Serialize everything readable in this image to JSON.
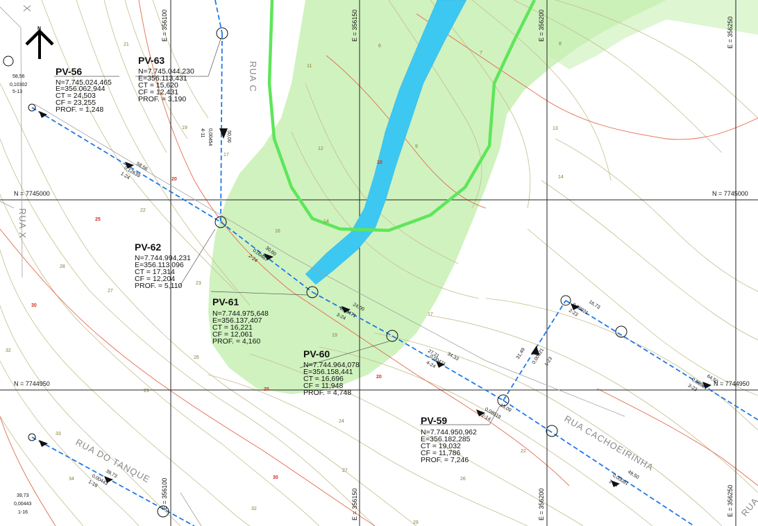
{
  "north_arrow": {
    "label": "N"
  },
  "grid": {
    "northings": [
      {
        "label": "N = 7745000"
      },
      {
        "label": "N = 7745000"
      },
      {
        "label": "N = 7744950"
      },
      {
        "label": "N = 7744950"
      }
    ],
    "eastings": [
      {
        "label": "E = 356100"
      },
      {
        "label": "E = 356150"
      },
      {
        "label": "E = 356200"
      },
      {
        "label": "E = 356250"
      },
      {
        "label": "E = 356100"
      },
      {
        "label": "E = 356150"
      },
      {
        "label": "E = 356200"
      },
      {
        "label": "E = 356250"
      }
    ]
  },
  "streets": [
    {
      "label": "RUA C"
    },
    {
      "label": "RUA X"
    },
    {
      "label": "RUA DO TANQUE"
    },
    {
      "label": "RUA CACHOEIRINHA"
    },
    {
      "label": "RUA"
    }
  ],
  "manholes": [
    {
      "name": "PV-56",
      "lines": [
        "N=7.745.024,465",
        "E=356.062,944",
        "CT = 24,503",
        "CF = 23,255",
        "PROF. = 1,248"
      ]
    },
    {
      "name": "PV-63",
      "lines": [
        "N=7.745.044,230",
        "E=356.113,431",
        "CT = 15,620",
        "CF = 12,431",
        "PROF. = 3,190"
      ]
    },
    {
      "name": "PV-62",
      "lines": [
        "N=7.744.994,231",
        "E=356.113,096",
        "CT = 17,314",
        "CF = 12,204",
        "PROF. = 5,110"
      ]
    },
    {
      "name": "PV-61",
      "lines": [
        "N=7.744.975,648",
        "E=356.137,407",
        "CT = 16,221",
        "CF = 12,061",
        "PROF. = 4,160"
      ]
    },
    {
      "name": "PV-60",
      "lines": [
        "N=7.744.964,078",
        "E=356.158,441",
        "CT = 16,696",
        "CF = 11,948",
        "PROF. = 4,748"
      ]
    },
    {
      "name": "PV-59",
      "lines": [
        "N=7.744.950,962",
        "E=356.182,285",
        "CT = 19,032",
        "CF = 11,786",
        "PROF. = 7,246"
      ]
    }
  ],
  "segment_labels": [
    {
      "length": "58,56",
      "slope": "0,12639",
      "code": "1-24"
    },
    {
      "length": "50,00",
      "slope": "0,00454",
      "code": "4-11"
    },
    {
      "length": "30,60",
      "slope": "0,00467",
      "code": "2-24"
    },
    {
      "length": "24,00",
      "slope": "0,00471",
      "code": "3-24"
    },
    {
      "length": "34,33",
      "slope": "0,00471",
      "code": "4-24"
    },
    {
      "length": "15,09",
      "slope": "0,08019",
      "code": "2-14"
    },
    {
      "length": "31,49",
      "slope": "0,00921",
      "code": "1-23"
    },
    {
      "length": "16,73",
      "slope": "0,00921",
      "code": "2-23"
    },
    {
      "length": "64,50",
      "slope": "0,00921",
      "code": "3-23"
    },
    {
      "length": "49,50",
      "slope": "0,00081",
      "code": "1-14"
    },
    {
      "length": "39,73",
      "slope": "0,00443",
      "code": "1-16"
    }
  ],
  "edge_labels": [
    {
      "length": "58,56",
      "slope": "0,10302",
      "code": "5-13"
    },
    {
      "length": "39,73",
      "slope": "0,00443",
      "code": "1-16"
    },
    {
      "length": "27,21",
      "slope": "",
      "code": ""
    }
  ],
  "contour_labels": [
    "21",
    "20",
    "19",
    "17",
    "22",
    "25",
    "28",
    "27",
    "30",
    "32",
    "26",
    "24",
    "23",
    "29",
    "33",
    "34",
    "16",
    "14",
    "13",
    "12",
    "11",
    "10",
    "9",
    "8",
    "7",
    "6",
    "19",
    "20",
    "22",
    "25",
    "30",
    "17",
    "14",
    "26",
    "29",
    "32",
    "27"
  ],
  "colors": {
    "flood_zone": "#c8f0b4",
    "channel": "#3cc8f0",
    "channel_border": "#4ae04a",
    "sewer": "#1e78e6",
    "contour": "#bfb98a",
    "contour_index": "#e05a3a",
    "gridline": "#222222"
  }
}
